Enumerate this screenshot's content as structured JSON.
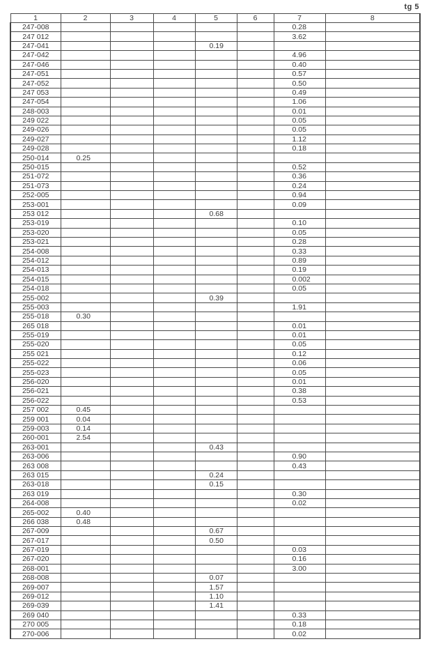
{
  "page_label": "tg 5",
  "columns": [
    "1",
    "2",
    "3",
    "4",
    "5",
    "6",
    "7",
    "8"
  ],
  "rows": [
    {
      "id": "247-008",
      "c2": "",
      "c5": "",
      "c7": "0.28"
    },
    {
      "id": "247 012",
      "c2": "",
      "c5": "",
      "c7": "3.62"
    },
    {
      "id": "247-041",
      "c2": "",
      "c5": "0.19",
      "c7": ""
    },
    {
      "id": "247-042",
      "c2": "",
      "c5": "",
      "c7": "4.96"
    },
    {
      "id": "247-046",
      "c2": "",
      "c5": "",
      "c7": "0.40"
    },
    {
      "id": "247-051",
      "c2": "",
      "c5": "",
      "c7": "0.57"
    },
    {
      "id": "247-052",
      "c2": "",
      "c5": "",
      "c7": "0.50"
    },
    {
      "id": "247 053",
      "c2": "",
      "c5": "",
      "c7": "0.49"
    },
    {
      "id": "247-054",
      "c2": "",
      "c5": "",
      "c7": "1.06"
    },
    {
      "id": "248-003",
      "c2": "",
      "c5": "",
      "c7": "0.01"
    },
    {
      "id": "249 022",
      "c2": "",
      "c5": "",
      "c7": "0.05"
    },
    {
      "id": "249-026",
      "c2": "",
      "c5": "",
      "c7": "0.05"
    },
    {
      "id": "249-027",
      "c2": "",
      "c5": "",
      "c7": "1.12"
    },
    {
      "id": "249-028",
      "c2": "",
      "c5": "",
      "c7": "0.18"
    },
    {
      "id": "250-014",
      "c2": "0.25",
      "c5": "",
      "c7": ""
    },
    {
      "id": "250-015",
      "c2": "",
      "c5": "",
      "c7": "0.52"
    },
    {
      "id": "251-072",
      "c2": "",
      "c5": "",
      "c7": "0.36"
    },
    {
      "id": "251-073",
      "c2": "",
      "c5": "",
      "c7": "0.24"
    },
    {
      "id": "252-005",
      "c2": "",
      "c5": "",
      "c7": "0.94"
    },
    {
      "id": "253-001",
      "c2": "",
      "c5": "",
      "c7": "0.09"
    },
    {
      "id": "253 012",
      "c2": "",
      "c5": "0.68",
      "c7": ""
    },
    {
      "id": "253-019",
      "c2": "",
      "c5": "",
      "c7": "0.10"
    },
    {
      "id": "253-020",
      "c2": "",
      "c5": "",
      "c7": "0.05"
    },
    {
      "id": "253-021",
      "c2": "",
      "c5": "",
      "c7": "0.28"
    },
    {
      "id": "254-008",
      "c2": "",
      "c5": "",
      "c7": "0.33"
    },
    {
      "id": "254-012",
      "c2": "",
      "c5": "",
      "c7": "0.89"
    },
    {
      "id": "254-013",
      "c2": "",
      "c5": "",
      "c7": "0.19"
    },
    {
      "id": "254-015",
      "c2": "",
      "c5": "",
      "c7": "0.002"
    },
    {
      "id": "254-018",
      "c2": "",
      "c5": "",
      "c7": "0.05"
    },
    {
      "id": "255-002",
      "c2": "",
      "c5": "0.39",
      "c7": ""
    },
    {
      "id": "255-003",
      "c2": "",
      "c5": "",
      "c7": "1.91"
    },
    {
      "id": "255-018",
      "c2": "0.30",
      "c5": "",
      "c7": ""
    },
    {
      "id": "265 018",
      "c2": "",
      "c5": "",
      "c7": "0.01"
    },
    {
      "id": "255-019",
      "c2": "",
      "c5": "",
      "c7": "0.01"
    },
    {
      "id": "255-020",
      "c2": "",
      "c5": "",
      "c7": "0.05"
    },
    {
      "id": "255 021",
      "c2": "",
      "c5": "",
      "c7": "0.12"
    },
    {
      "id": "255-022",
      "c2": "",
      "c5": "",
      "c7": "0.06"
    },
    {
      "id": "255-023",
      "c2": "",
      "c5": "",
      "c7": "0.05"
    },
    {
      "id": "256-020",
      "c2": "",
      "c5": "",
      "c7": "0.01"
    },
    {
      "id": "256-021",
      "c2": "",
      "c5": "",
      "c7": "0.38"
    },
    {
      "id": "256-022",
      "c2": "",
      "c5": "",
      "c7": "0.53"
    },
    {
      "id": "257 002",
      "c2": "0.45",
      "c5": "",
      "c7": ""
    },
    {
      "id": "259 001",
      "c2": "0.04",
      "c5": "",
      "c7": ""
    },
    {
      "id": "259-003",
      "c2": "0.14",
      "c5": "",
      "c7": ""
    },
    {
      "id": "260-001",
      "c2": "2.54",
      "c5": "",
      "c7": ""
    },
    {
      "id": "263-001",
      "c2": "",
      "c5": "0.43",
      "c7": ""
    },
    {
      "id": "263-006",
      "c2": "",
      "c5": "",
      "c7": "0.90"
    },
    {
      "id": "263 008",
      "c2": "",
      "c5": "",
      "c7": "0.43"
    },
    {
      "id": "263 015",
      "c2": "",
      "c5": "0.24",
      "c7": ""
    },
    {
      "id": "263-018",
      "c2": "",
      "c5": "0.15",
      "c7": ""
    },
    {
      "id": "263 019",
      "c2": "",
      "c5": "",
      "c7": "0.30"
    },
    {
      "id": "264-008",
      "c2": "",
      "c5": "",
      "c7": "0.02"
    },
    {
      "id": "265-002",
      "c2": "0.40",
      "c5": "",
      "c7": ""
    },
    {
      "id": "266 038",
      "c2": "0.48",
      "c5": "",
      "c7": ""
    },
    {
      "id": "267-009",
      "c2": "",
      "c5": "0.67",
      "c7": ""
    },
    {
      "id": "267-017",
      "c2": "",
      "c5": "0.50",
      "c7": ""
    },
    {
      "id": "267-019",
      "c2": "",
      "c5": "",
      "c7": "0.03"
    },
    {
      "id": "267-020",
      "c2": "",
      "c5": "",
      "c7": "0.16"
    },
    {
      "id": "268-001",
      "c2": "",
      "c5": "",
      "c7": "3.00"
    },
    {
      "id": "268-008",
      "c2": "",
      "c5": "0.07",
      "c7": ""
    },
    {
      "id": "269-007",
      "c2": "",
      "c5": "1.57",
      "c7": ""
    },
    {
      "id": "269-012",
      "c2": "",
      "c5": "1.10",
      "c7": ""
    },
    {
      "id": "269-039",
      "c2": "",
      "c5": "1.41",
      "c7": ""
    },
    {
      "id": "269 040",
      "c2": "",
      "c5": "",
      "c7": "0.33"
    },
    {
      "id": "270 005",
      "c2": "",
      "c5": "",
      "c7": "0.18"
    },
    {
      "id": "270-006",
      "c2": "",
      "c5": "",
      "c7": "0.02"
    }
  ]
}
